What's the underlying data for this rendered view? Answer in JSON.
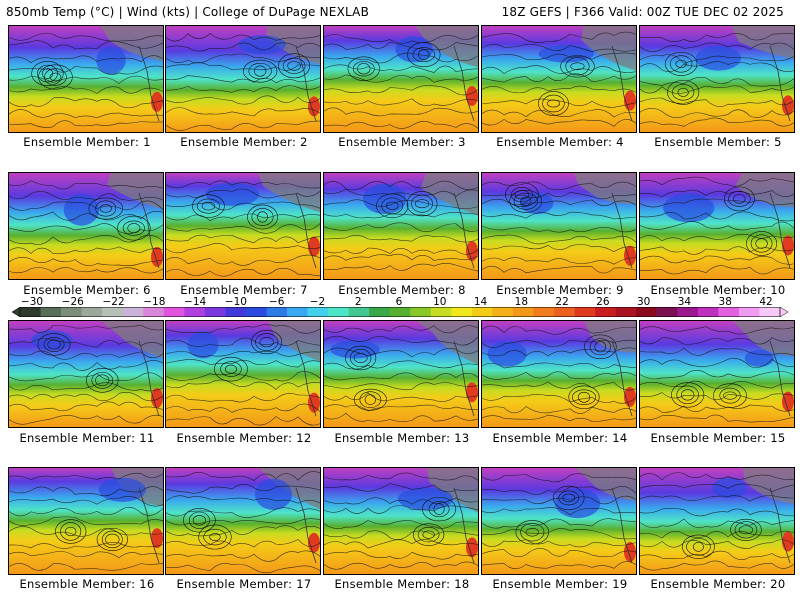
{
  "header": {
    "left": "850mb Temp (°C) | Wind (kts) | College of DuPage NEXLAB",
    "right": "18Z GEFS | F366 Valid: 00Z TUE DEC 02 2025"
  },
  "colorbar": {
    "ticks": [
      "-30",
      "-26",
      "-22",
      "-18",
      "-14",
      "-10",
      "-6",
      "-2",
      "2",
      "6",
      "10",
      "14",
      "18",
      "22",
      "26",
      "30",
      "34",
      "38",
      "42"
    ],
    "colors": [
      "#2e3b2e",
      "#596e59",
      "#7a8e7a",
      "#9aa79a",
      "#b8bfb8",
      "#c9b3d9",
      "#d985d9",
      "#e055e0",
      "#b040e0",
      "#7a3ae0",
      "#4338d8",
      "#2a4de0",
      "#2e7be8",
      "#3aa8ee",
      "#43d0ee",
      "#4ee4c8",
      "#42c890",
      "#39a848",
      "#58b030",
      "#8ac828",
      "#c8dc20",
      "#f0e81c",
      "#f4cc18",
      "#f4b018",
      "#f49818",
      "#f07c1c",
      "#ec6020",
      "#e03a20",
      "#c81e20",
      "#a81420",
      "#8a0a1c",
      "#7a1050",
      "#9a1890",
      "#c030c0",
      "#e060e0",
      "#f09af0",
      "#f8c8f8"
    ]
  },
  "panels": [
    {
      "label": "Ensemble Member: 1"
    },
    {
      "label": "Ensemble Member: 2"
    },
    {
      "label": "Ensemble Member: 3"
    },
    {
      "label": "Ensemble Member: 4"
    },
    {
      "label": "Ensemble Member: 5"
    },
    {
      "label": "Ensemble Member: 6"
    },
    {
      "label": "Ensemble Member: 7"
    },
    {
      "label": "Ensemble Member: 8"
    },
    {
      "label": "Ensemble Member: 9"
    },
    {
      "label": "Ensemble Member: 10"
    },
    {
      "label": "Ensemble Member: 11"
    },
    {
      "label": "Ensemble Member: 12"
    },
    {
      "label": "Ensemble Member: 13"
    },
    {
      "label": "Ensemble Member: 14"
    },
    {
      "label": "Ensemble Member: 15"
    },
    {
      "label": "Ensemble Member: 16"
    },
    {
      "label": "Ensemble Member: 17"
    },
    {
      "label": "Ensemble Member: 18"
    },
    {
      "label": "Ensemble Member: 19"
    },
    {
      "label": "Ensemble Member: 20"
    }
  ]
}
